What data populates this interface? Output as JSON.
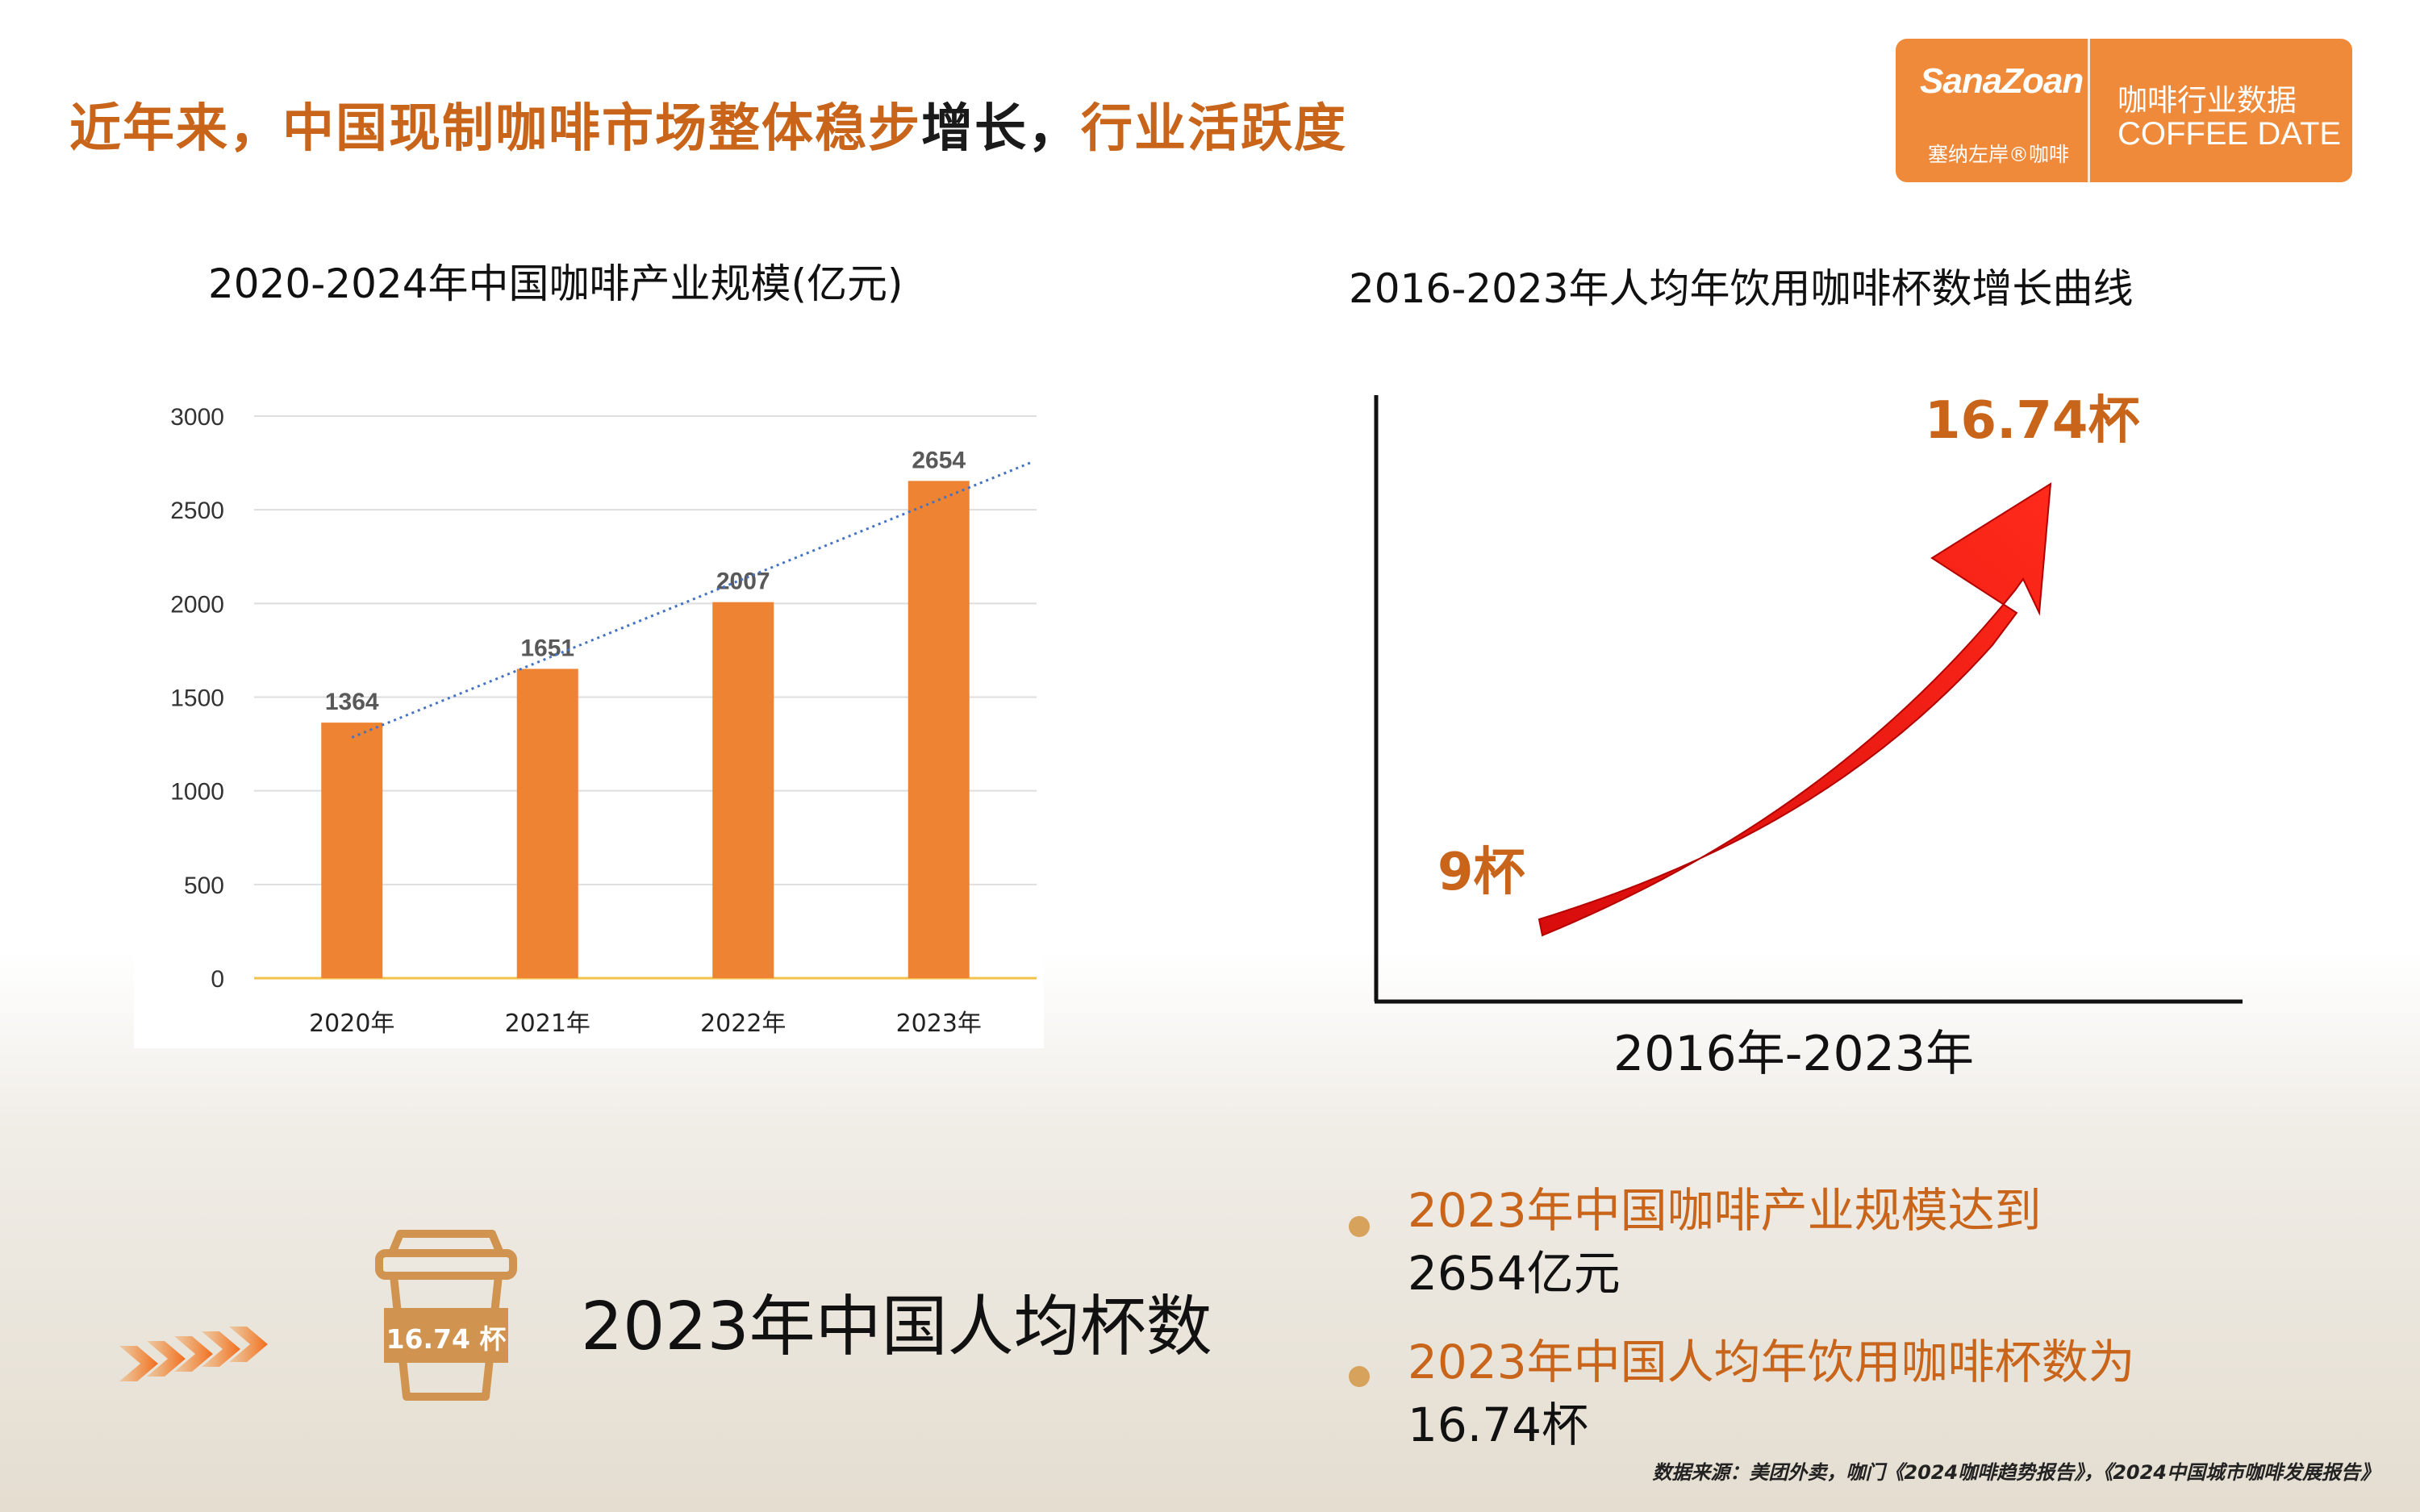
{
  "header": {
    "headline_part1": "近年来，中国现制咖啡市场整体稳步",
    "headline_part2": "增长，",
    "headline_part3": "行业活跃度",
    "accent_color": "#c8651b"
  },
  "logo": {
    "brand": "SanaZoan",
    "brand_cn": "塞纳左岸®咖啡",
    "category": "咖啡行业数据",
    "category_en": "COFFEE DATE",
    "background": "#ee8a3a"
  },
  "chart_data": [
    {
      "type": "bar",
      "title": "2020-2024年中国咖啡产业规模(亿元)",
      "categories": [
        "2020年",
        "2021年",
        "2022年",
        "2023年"
      ],
      "values": [
        1364,
        1651,
        2007,
        2654
      ],
      "data_labels": [
        "1364",
        "1651",
        "2007",
        "2654"
      ],
      "ylim": [
        0,
        3000
      ],
      "yticks": [
        "0",
        "500",
        "1000",
        "1500",
        "2000",
        "2500",
        "3000"
      ],
      "trendline": "linear dotted",
      "grid": true,
      "bar_color": "#ee8433",
      "trend_color": "#4472c4"
    },
    {
      "type": "line",
      "title": "2016-2023年人均年饮用咖啡杯数增长曲线",
      "xlabel": "2016年-2023年",
      "start_label": "9杯",
      "end_label": "16.74杯",
      "values": [
        9,
        16.74
      ],
      "arrow_color": "#e8100f"
    }
  ],
  "cup": {
    "badge": "16.74 杯",
    "label": "2023年中国人均杯数"
  },
  "bullets": [
    {
      "line1": "2023年中国咖啡产业规模达到",
      "line2": "2654亿元"
    },
    {
      "line1": "2023年中国人均年饮用咖啡杯数为",
      "line2": "16.74杯"
    }
  ],
  "source": "数据来源：美团外卖，咖门《2024咖啡趋势报告》，《2024中国城市咖啡发展报告》"
}
